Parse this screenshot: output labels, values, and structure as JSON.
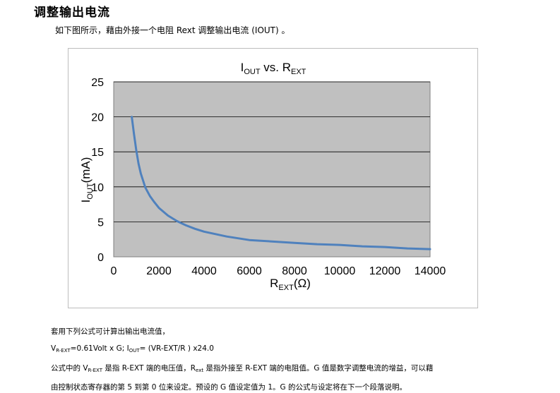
{
  "heading": "调整输出电流",
  "intro": "如下图所示，藉由外接一个电阻 Rext 调整输出电流 (IOUT) 。",
  "chart_data": {
    "type": "line",
    "title_main": "I",
    "title_sub": "OUT",
    "title_mid": " vs. R",
    "title_sub2": "EXT",
    "xlabel_main": "R",
    "xlabel_sub": "EXT",
    "xlabel_unit": "(Ω)",
    "ylabel_main": "I",
    "ylabel_sub": "OUT",
    "ylabel_unit": "(mA)",
    "xlim": [
      0,
      14000
    ],
    "ylim": [
      0,
      25
    ],
    "xticks": [
      "0",
      "2000",
      "4000",
      "6000",
      "8000",
      "10000",
      "12000",
      "14000"
    ],
    "yticks": [
      "0",
      "5",
      "10",
      "15",
      "20",
      "25"
    ],
    "grid": true,
    "plot_bg": "#c0c0c0",
    "line_color": "#4f81bd",
    "series": [
      {
        "x": [
          800,
          900,
          1000,
          1100,
          1200,
          1400,
          1600,
          1800,
          2000,
          2400,
          2800,
          3200,
          3600,
          4000,
          5000,
          6000,
          7000,
          8000,
          9000,
          10000,
          11000,
          12000,
          13000,
          14000
        ],
        "y": [
          20.0,
          17.5,
          15.2,
          13.3,
          11.9,
          9.9,
          8.7,
          7.8,
          7.0,
          5.9,
          5.1,
          4.5,
          4.0,
          3.6,
          2.9,
          2.4,
          2.2,
          2.0,
          1.8,
          1.7,
          1.5,
          1.4,
          1.2,
          1.1
        ]
      }
    ]
  },
  "paragraphs": {
    "p1": "套用下列公式可计算出输出电流值，",
    "p2_a": "V",
    "p2_b": "R-EXT",
    "p2_c": "=0.61Volt x G; I",
    "p2_d": "OUT",
    "p2_e": "= (VR-EXT/R ) x24.0",
    "p3_a": "公式中的 V",
    "p3_b": "R-EXT",
    "p3_c": " 是指 R-EXT 端的电压值，R",
    "p3_d": "ext",
    "p3_e": " 是指外接至 R-EXT 端的电阻值。G 值是数字调整电流的增益，可以藉",
    "p4": "由控制状态寄存器的第 5 到第 0 位来设定。预设的 G 值设定值为 1。G 的公式与设定将在下一个段落说明。"
  }
}
